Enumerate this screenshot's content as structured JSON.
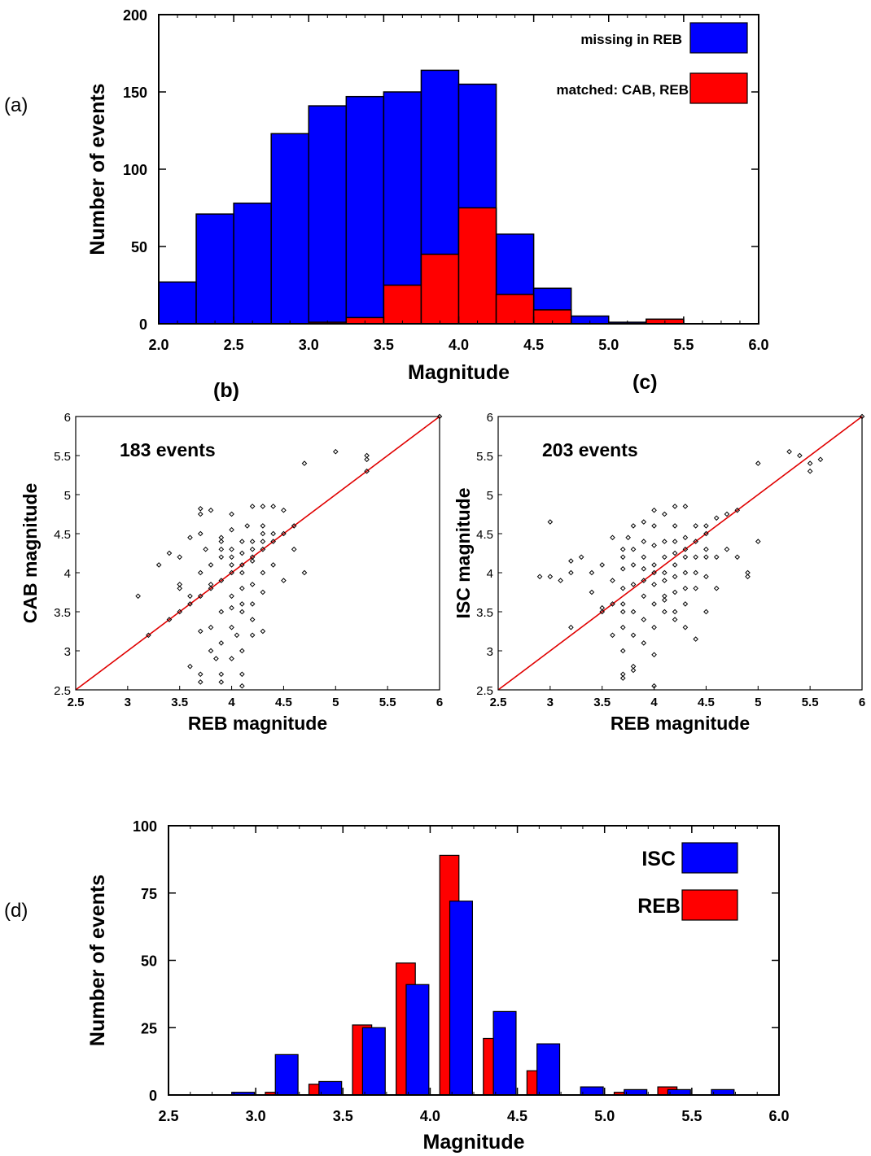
{
  "panel_labels": {
    "a": "(a)",
    "b": "(b)",
    "c": "(c)",
    "d": "(d)"
  },
  "colors": {
    "blue": "#0000ff",
    "red": "#ff0000",
    "axis": "#000000",
    "diag": "#e00000"
  },
  "chart_data": [
    {
      "id": "a",
      "type": "bar",
      "xlabel": "Magnitude",
      "ylabel": "Number of events",
      "xlim": [
        2.0,
        6.0
      ],
      "ylim": [
        0,
        200
      ],
      "xticks": [
        "2.0",
        "2.5",
        "3.0",
        "3.5",
        "4.0",
        "4.5",
        "5.0",
        "5.5",
        "6.0"
      ],
      "yticks": [
        "0",
        "50",
        "100",
        "150",
        "200"
      ],
      "legend_placement": "top-right",
      "bin_edges": [
        2.0,
        2.25,
        2.5,
        2.75,
        3.0,
        3.25,
        3.5,
        3.75,
        4.0,
        4.25,
        4.5,
        4.75,
        5.0,
        5.25,
        5.5,
        5.75,
        6.0
      ],
      "series": [
        {
          "name": "missing in REB",
          "color": "#0000ff",
          "values": [
            27,
            71,
            78,
            123,
            141,
            147,
            150,
            164,
            155,
            58,
            23,
            5,
            1,
            2,
            0,
            0
          ]
        },
        {
          "name": "matched: CAB, REB",
          "color": "#ff0000",
          "values": [
            0,
            0,
            0,
            0,
            1,
            4,
            25,
            45,
            75,
            19,
            9,
            0,
            0,
            3,
            0,
            0
          ]
        }
      ]
    },
    {
      "id": "b",
      "type": "scatter",
      "annotation": "183 events",
      "xlabel": "REB magnitude",
      "ylabel": "CAB magnitude",
      "xlim": [
        2.5,
        6
      ],
      "ylim": [
        2.5,
        6
      ],
      "xticks": [
        "2.5",
        "3",
        "3.5",
        "4",
        "4.5",
        "5",
        "5.5",
        "6"
      ],
      "yticks": [
        "2.5",
        "3",
        "3.5",
        "4",
        "4.5",
        "5",
        "5.5",
        "6"
      ],
      "reference_line": [
        [
          2.5,
          2.5
        ],
        [
          6,
          6
        ]
      ],
      "points": [
        [
          3.1,
          3.7
        ],
        [
          3.2,
          3.2
        ],
        [
          3.3,
          4.1
        ],
        [
          3.4,
          4.25
        ],
        [
          3.4,
          3.4
        ],
        [
          3.5,
          3.5
        ],
        [
          3.5,
          3.8
        ],
        [
          3.5,
          3.85
        ],
        [
          3.5,
          4.2
        ],
        [
          3.6,
          3.6
        ],
        [
          3.6,
          3.7
        ],
        [
          3.6,
          4.45
        ],
        [
          3.6,
          2.8
        ],
        [
          3.7,
          3.7
        ],
        [
          3.7,
          4.0
        ],
        [
          3.7,
          4.5
        ],
        [
          3.7,
          4.75
        ],
        [
          3.7,
          4.82
        ],
        [
          3.7,
          3.25
        ],
        [
          3.7,
          2.6
        ],
        [
          3.7,
          2.7
        ],
        [
          3.75,
          4.3
        ],
        [
          3.8,
          3.8
        ],
        [
          3.8,
          3.85
        ],
        [
          3.8,
          4.1
        ],
        [
          3.8,
          3.3
        ],
        [
          3.8,
          3.0
        ],
        [
          3.8,
          4.8
        ],
        [
          3.85,
          2.9
        ],
        [
          3.9,
          3.9
        ],
        [
          3.9,
          4.2
        ],
        [
          3.9,
          4.3
        ],
        [
          3.9,
          4.4
        ],
        [
          3.9,
          4.45
        ],
        [
          3.9,
          3.5
        ],
        [
          3.9,
          3.1
        ],
        [
          3.9,
          2.7
        ],
        [
          3.9,
          2.6
        ],
        [
          4.0,
          4.0
        ],
        [
          4.0,
          4.1
        ],
        [
          4.0,
          4.2
        ],
        [
          4.0,
          4.3
        ],
        [
          4.0,
          4.55
        ],
        [
          4.0,
          4.75
        ],
        [
          4.0,
          3.7
        ],
        [
          4.0,
          3.55
        ],
        [
          4.0,
          3.3
        ],
        [
          4.0,
          2.9
        ],
        [
          4.05,
          3.2
        ],
        [
          4.1,
          4.1
        ],
        [
          4.1,
          4.0
        ],
        [
          4.1,
          4.25
        ],
        [
          4.1,
          4.4
        ],
        [
          4.1,
          3.8
        ],
        [
          4.1,
          3.6
        ],
        [
          4.1,
          3.5
        ],
        [
          4.1,
          3.0
        ],
        [
          4.1,
          2.7
        ],
        [
          4.1,
          2.55
        ],
        [
          4.15,
          4.6
        ],
        [
          4.2,
          4.2
        ],
        [
          4.2,
          4.3
        ],
        [
          4.2,
          4.4
        ],
        [
          4.2,
          4.15
        ],
        [
          4.2,
          4.85
        ],
        [
          4.2,
          3.85
        ],
        [
          4.2,
          3.6
        ],
        [
          4.2,
          3.4
        ],
        [
          4.2,
          3.2
        ],
        [
          4.3,
          4.3
        ],
        [
          4.3,
          4.4
        ],
        [
          4.3,
          4.5
        ],
        [
          4.3,
          4.6
        ],
        [
          4.3,
          4.85
        ],
        [
          4.3,
          4.0
        ],
        [
          4.3,
          3.75
        ],
        [
          4.3,
          3.25
        ],
        [
          4.4,
          4.4
        ],
        [
          4.4,
          4.5
        ],
        [
          4.4,
          4.85
        ],
        [
          4.4,
          4.1
        ],
        [
          4.5,
          4.5
        ],
        [
          4.5,
          4.8
        ],
        [
          4.5,
          3.9
        ],
        [
          4.6,
          4.6
        ],
        [
          4.6,
          4.3
        ],
        [
          4.7,
          5.4
        ],
        [
          4.7,
          4.0
        ],
        [
          5.0,
          5.55
        ],
        [
          5.3,
          5.5
        ],
        [
          5.3,
          5.45
        ],
        [
          5.3,
          5.3
        ],
        [
          6.0,
          6.0
        ]
      ]
    },
    {
      "id": "c",
      "type": "scatter",
      "annotation": "203 events",
      "xlabel": "REB magnitude",
      "ylabel": "ISC magnitude",
      "xlim": [
        2.5,
        6
      ],
      "ylim": [
        2.5,
        6
      ],
      "xticks": [
        "2.5",
        "3",
        "3.5",
        "4",
        "4.5",
        "5",
        "5.5",
        "6"
      ],
      "yticks": [
        "2.5",
        "3",
        "3.5",
        "4",
        "4.5",
        "5",
        "5.5",
        "6"
      ],
      "reference_line": [
        [
          2.5,
          2.5
        ],
        [
          6,
          6
        ]
      ],
      "points": [
        [
          2.9,
          3.95
        ],
        [
          3.0,
          4.65
        ],
        [
          3.0,
          3.95
        ],
        [
          3.1,
          3.9
        ],
        [
          3.2,
          4.15
        ],
        [
          3.2,
          4.0
        ],
        [
          3.2,
          3.3
        ],
        [
          3.3,
          4.2
        ],
        [
          3.4,
          4.0
        ],
        [
          3.4,
          3.75
        ],
        [
          3.5,
          4.1
        ],
        [
          3.5,
          3.5
        ],
        [
          3.5,
          3.55
        ],
        [
          3.6,
          3.9
        ],
        [
          3.6,
          3.6
        ],
        [
          3.6,
          3.2
        ],
        [
          3.6,
          4.45
        ],
        [
          3.7,
          4.3
        ],
        [
          3.7,
          4.2
        ],
        [
          3.7,
          4.05
        ],
        [
          3.7,
          3.8
        ],
        [
          3.7,
          3.6
        ],
        [
          3.7,
          3.5
        ],
        [
          3.7,
          3.3
        ],
        [
          3.7,
          3.0
        ],
        [
          3.7,
          2.7
        ],
        [
          3.7,
          2.65
        ],
        [
          3.75,
          4.45
        ],
        [
          3.8,
          4.6
        ],
        [
          3.8,
          4.3
        ],
        [
          3.8,
          4.1
        ],
        [
          3.8,
          3.85
        ],
        [
          3.8,
          3.5
        ],
        [
          3.8,
          3.2
        ],
        [
          3.8,
          2.8
        ],
        [
          3.8,
          2.75
        ],
        [
          3.9,
          4.65
        ],
        [
          3.9,
          4.4
        ],
        [
          3.9,
          4.2
        ],
        [
          3.9,
          4.05
        ],
        [
          3.9,
          3.9
        ],
        [
          3.9,
          3.7
        ],
        [
          3.9,
          3.4
        ],
        [
          3.9,
          3.1
        ],
        [
          4.0,
          4.8
        ],
        [
          4.0,
          4.6
        ],
        [
          4.0,
          4.35
        ],
        [
          4.0,
          4.1
        ],
        [
          4.0,
          4.0
        ],
        [
          4.0,
          3.85
        ],
        [
          4.0,
          3.6
        ],
        [
          4.0,
          3.3
        ],
        [
          4.0,
          2.95
        ],
        [
          4.0,
          2.55
        ],
        [
          4.1,
          4.75
        ],
        [
          4.1,
          4.4
        ],
        [
          4.1,
          4.2
        ],
        [
          4.1,
          4.0
        ],
        [
          4.1,
          3.9
        ],
        [
          4.1,
          3.7
        ],
        [
          4.1,
          3.65
        ],
        [
          4.1,
          3.5
        ],
        [
          4.2,
          4.85
        ],
        [
          4.2,
          4.6
        ],
        [
          4.2,
          4.4
        ],
        [
          4.2,
          4.25
        ],
        [
          4.2,
          4.1
        ],
        [
          4.2,
          3.95
        ],
        [
          4.2,
          3.75
        ],
        [
          4.2,
          3.5
        ],
        [
          4.2,
          3.4
        ],
        [
          4.3,
          4.85
        ],
        [
          4.3,
          4.45
        ],
        [
          4.3,
          4.3
        ],
        [
          4.3,
          4.2
        ],
        [
          4.3,
          4.0
        ],
        [
          4.3,
          3.8
        ],
        [
          4.3,
          3.6
        ],
        [
          4.3,
          3.3
        ],
        [
          4.4,
          4.6
        ],
        [
          4.4,
          4.4
        ],
        [
          4.4,
          4.2
        ],
        [
          4.4,
          4.0
        ],
        [
          4.4,
          3.8
        ],
        [
          4.4,
          3.15
        ],
        [
          4.5,
          4.5
        ],
        [
          4.5,
          4.6
        ],
        [
          4.5,
          4.3
        ],
        [
          4.5,
          4.2
        ],
        [
          4.5,
          3.95
        ],
        [
          4.5,
          3.5
        ],
        [
          4.6,
          4.7
        ],
        [
          4.6,
          4.2
        ],
        [
          4.6,
          3.8
        ],
        [
          4.7,
          4.75
        ],
        [
          4.7,
          4.3
        ],
        [
          4.8,
          4.8
        ],
        [
          4.8,
          4.2
        ],
        [
          4.9,
          4.0
        ],
        [
          4.9,
          3.95
        ],
        [
          5.0,
          5.4
        ],
        [
          5.0,
          4.4
        ],
        [
          5.3,
          5.55
        ],
        [
          5.4,
          5.5
        ],
        [
          5.5,
          5.3
        ],
        [
          5.5,
          5.4
        ],
        [
          5.6,
          5.45
        ],
        [
          6.0,
          6.0
        ]
      ]
    },
    {
      "id": "d",
      "type": "bar",
      "xlabel": "Magnitude",
      "ylabel": "Number of events",
      "xlim": [
        2.5,
        6.0
      ],
      "ylim": [
        0,
        100
      ],
      "xticks": [
        "2.5",
        "3.0",
        "3.5",
        "4.0",
        "4.5",
        "5.0",
        "5.5",
        "6.0"
      ],
      "yticks": [
        "0",
        "25",
        "50",
        "75",
        "100"
      ],
      "legend_placement": "top-right",
      "bin_edges": [
        2.5,
        2.75,
        3.0,
        3.25,
        3.5,
        3.75,
        4.0,
        4.25,
        4.5,
        4.75,
        5.0,
        5.25,
        5.5,
        5.75,
        6.0
      ],
      "series": [
        {
          "name": "ISC",
          "color": "#0000ff",
          "values": [
            0,
            1,
            15,
            5,
            25,
            41,
            72,
            31,
            19,
            3,
            2,
            2,
            2,
            0
          ]
        },
        {
          "name": "REB",
          "color": "#ff0000",
          "values": [
            0,
            0,
            1,
            4,
            26,
            49,
            89,
            21,
            9,
            0,
            1,
            3,
            0,
            0
          ]
        }
      ]
    }
  ]
}
